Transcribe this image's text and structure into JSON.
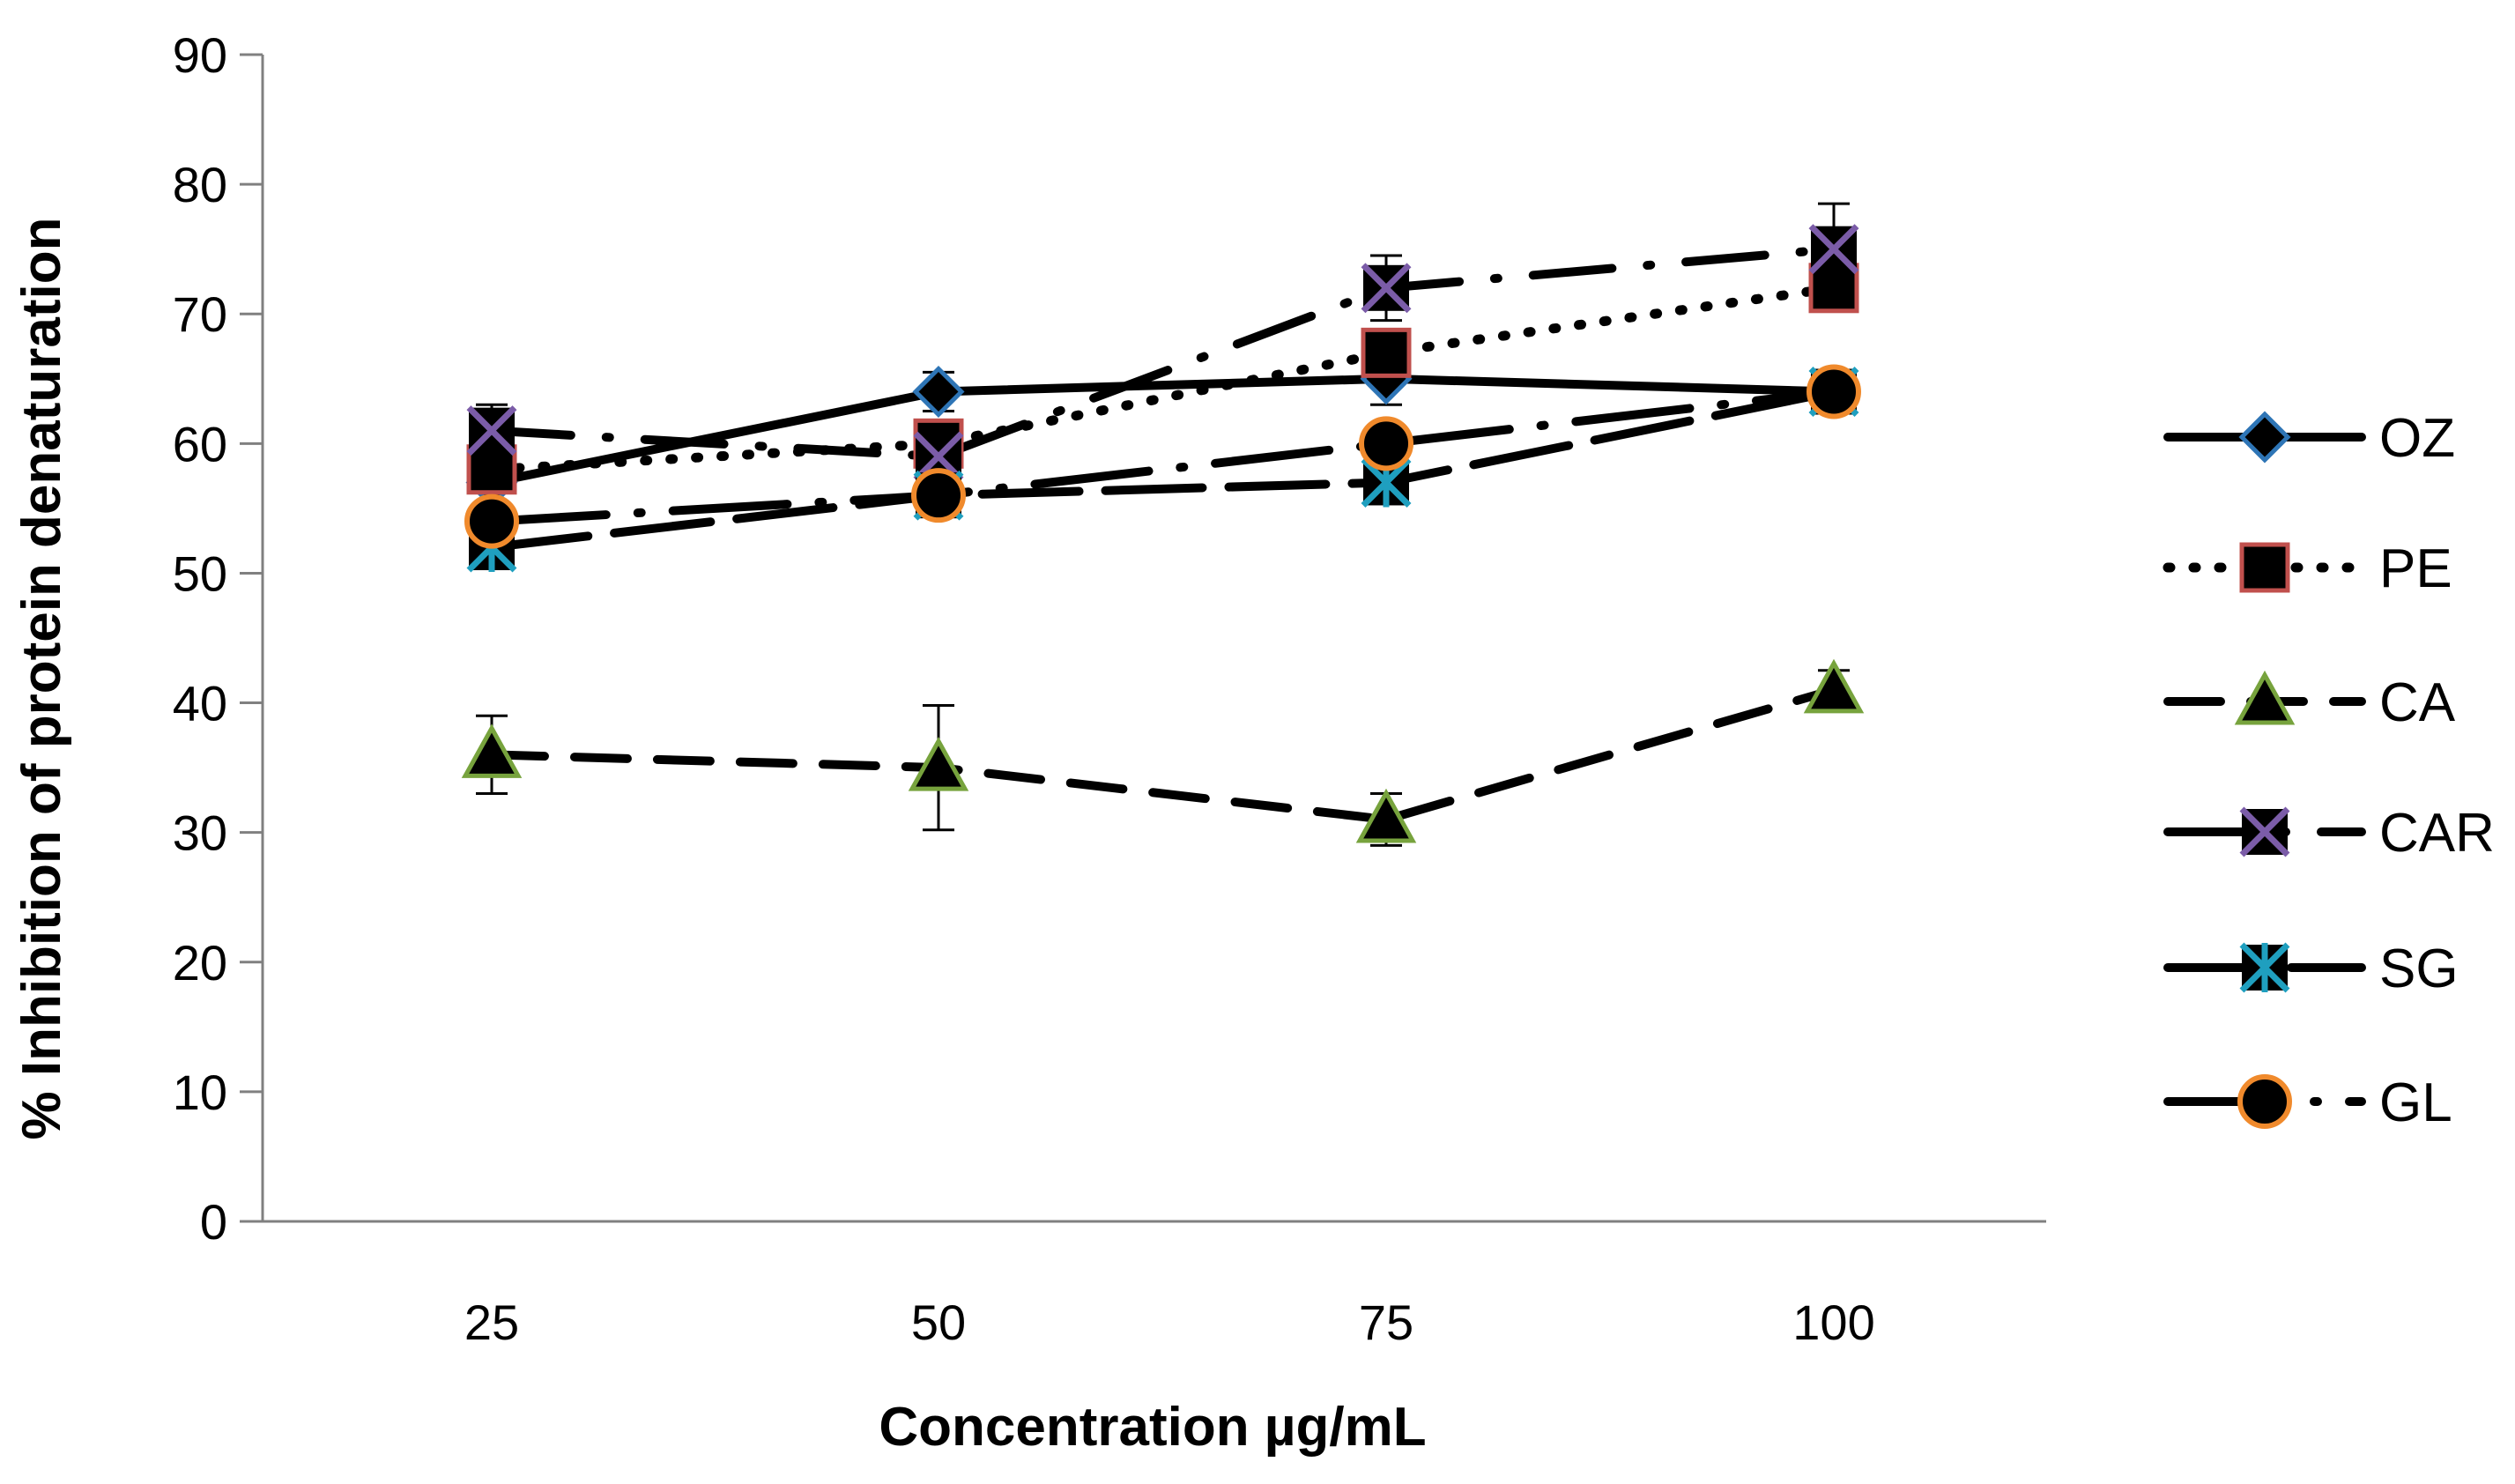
{
  "chart_data": {
    "type": "line",
    "title": "",
    "xlabel": "Concentration µg/mL",
    "ylabel": "% Inhibition of protein denaturation",
    "categories": [
      "25",
      "50",
      "75",
      "100"
    ],
    "ylim": [
      0,
      90
    ],
    "yticks": [
      0,
      10,
      20,
      30,
      40,
      50,
      60,
      70,
      80,
      90
    ],
    "grid": false,
    "legend_position": "right",
    "series": [
      {
        "name": "OZ",
        "values": [
          57,
          64,
          65,
          64
        ],
        "error": [
          0,
          1.5,
          2,
          1
        ],
        "line": "solid",
        "marker": "diamond",
        "marker_edge": "#2E75B6",
        "marker_fill": "#000000"
      },
      {
        "name": "PE",
        "values": [
          58,
          60,
          67,
          72
        ],
        "error": [
          0,
          1,
          1.5,
          1.5
        ],
        "line": "dotted",
        "marker": "square",
        "marker_edge": "#C0504D",
        "marker_fill": "#000000"
      },
      {
        "name": "CA",
        "values": [
          36,
          35,
          31,
          41
        ],
        "error": [
          3,
          4.8,
          2,
          1.5
        ],
        "line": "dashed",
        "marker": "triangle",
        "marker_edge": "#77A33D",
        "marker_fill": "#000000"
      },
      {
        "name": "CAR",
        "values": [
          61,
          59,
          72,
          75
        ],
        "error": [
          2,
          1,
          2.5,
          3.5
        ],
        "line": "dash-dot",
        "marker": "x",
        "marker_edge": "#7B5CA8",
        "marker_fill": "#000000"
      },
      {
        "name": "SG",
        "values": [
          52,
          56,
          57,
          64
        ],
        "error": [
          0,
          1,
          1,
          1
        ],
        "line": "longdash",
        "marker": "star",
        "marker_edge": "#1F9FBF",
        "marker_fill": "#000000"
      },
      {
        "name": "GL",
        "values": [
          54,
          56,
          60,
          64
        ],
        "error": [
          0,
          0,
          0,
          0
        ],
        "line": "dash-dot-long",
        "marker": "circle",
        "marker_edge": "#F08A2C",
        "marker_fill": "#000000"
      }
    ]
  }
}
